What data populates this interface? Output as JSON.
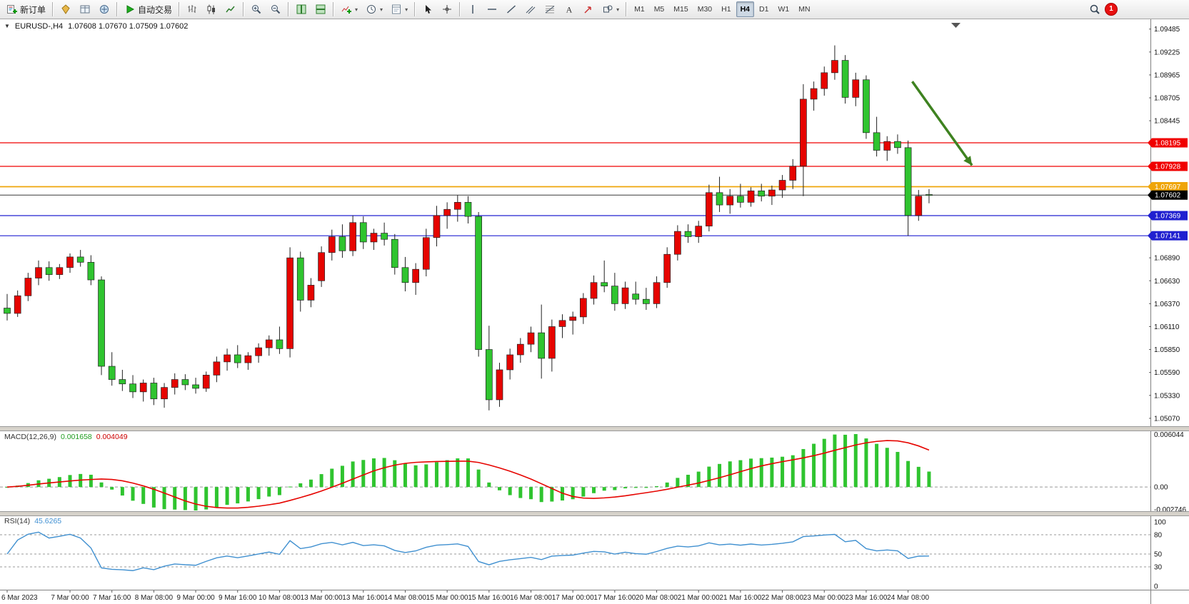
{
  "toolbar": {
    "groups": [
      [
        {
          "name": "new-order-button",
          "icon": "new-order-icon",
          "label": "新订单"
        }
      ],
      [
        {
          "name": "metaeditor-button",
          "icon": "metaeditor-icon"
        },
        {
          "name": "market-watch-button",
          "icon": "market-watch-icon"
        },
        {
          "name": "navigator-button",
          "icon": "navigator-icon"
        }
      ],
      [
        {
          "name": "autotrading-button",
          "icon": "play-icon",
          "label": "自动交易"
        }
      ],
      [
        {
          "name": "bar-chart-button",
          "icon": "bar-chart-icon"
        },
        {
          "name": "candlestick-chart-button",
          "icon": "candle-chart-icon"
        },
        {
          "name": "line-chart-button",
          "icon": "line-chart-icon"
        }
      ],
      [
        {
          "name": "zoom-in-button",
          "icon": "zoom-in-icon"
        },
        {
          "name": "zoom-out-button",
          "icon": "zoom-out-icon"
        }
      ],
      [
        {
          "name": "tile-windows-button",
          "icon": "tile-windows-icon"
        },
        {
          "name": "cascade-windows-button",
          "icon": "cascade-windows-icon"
        }
      ],
      [
        {
          "name": "indicators-button",
          "icon": "indicators-icon",
          "dropdown": true
        },
        {
          "name": "periods-button",
          "icon": "clock-icon",
          "dropdown": true
        },
        {
          "name": "templates-button",
          "icon": "template-icon",
          "dropdown": true
        }
      ],
      [
        {
          "name": "cursor-button",
          "icon": "cursor-icon"
        },
        {
          "name": "crosshair-button",
          "icon": "crosshair-icon"
        }
      ],
      [
        {
          "name": "vertical-line-button",
          "icon": "vline-icon"
        },
        {
          "name": "horizontal-line-button",
          "icon": "hline-icon"
        },
        {
          "name": "trendline-button",
          "icon": "trendline-icon"
        },
        {
          "name": "channel-button",
          "icon": "channel-icon"
        },
        {
          "name": "fibonacci-button",
          "icon": "fibonacci-icon"
        },
        {
          "name": "text-label-button",
          "icon": "text-icon"
        },
        {
          "name": "arrow-label-button",
          "icon": "arrow-label-icon"
        },
        {
          "name": "shapes-menu-button",
          "icon": "shapes-icon",
          "dropdown": true
        }
      ]
    ],
    "timeframes": [
      {
        "label": "M1"
      },
      {
        "label": "M5"
      },
      {
        "label": "M15"
      },
      {
        "label": "M30"
      },
      {
        "label": "H1"
      },
      {
        "label": "H4",
        "active": true
      },
      {
        "label": "D1"
      },
      {
        "label": "W1"
      },
      {
        "label": "MN"
      }
    ],
    "search_icon": "search-icon",
    "notification_count": "1"
  },
  "chart": {
    "symbol_label": "EURUSD-,H4",
    "ohlc_label": "1.07608 1.07670 1.07509 1.07602"
  },
  "indicators": {
    "macd": {
      "label": "MACD(12,26,9)",
      "value_main": "0.001658",
      "value_signal": "0.004049",
      "axis": {
        "top": "0.006044",
        "zero": "0.00",
        "bottom": "-0.002746"
      }
    },
    "rsi": {
      "label": "RSI(14)",
      "value": "45.6265",
      "axis_labels": [
        {
          "v": 100,
          "t": "100",
          "dashed": false
        },
        {
          "v": 80,
          "t": "80",
          "dashed": true
        },
        {
          "v": 50,
          "t": "50",
          "dashed": true
        },
        {
          "v": 30,
          "t": "30",
          "dashed": true
        },
        {
          "v": 0,
          "t": "0",
          "dashed": false
        }
      ]
    }
  },
  "chart_data": {
    "type": "candlestick+indicators",
    "symbol": "EURUSD-",
    "timeframe": "H4",
    "note_colors": "Chinese convention: red = bullish (up), green = bearish (down)",
    "price_scale": {
      "top": 1.0958,
      "bottom": 1.0498
    },
    "price_axis_ticks": [
      "1.09485",
      "1.09225",
      "1.08965",
      "1.08705",
      "1.08445",
      "1.06890",
      "1.06630",
      "1.06370",
      "1.06110",
      "1.05850",
      "1.05590",
      "1.05330",
      "1.05070"
    ],
    "levels": [
      {
        "price": 1.08195,
        "label": "1.08195",
        "color": "#f00000",
        "width": 1.2
      },
      {
        "price": 1.07928,
        "label": "1.07928",
        "color": "#f00000",
        "width": 1.2
      },
      {
        "price": 1.07697,
        "label": "1.07697",
        "color": "#efa50a",
        "width": 1.8
      },
      {
        "price": 1.07369,
        "label": "1.07369",
        "color": "#2020d0",
        "width": 1.2
      },
      {
        "price": 1.07141,
        "label": "1.07141",
        "color": "#2020d0",
        "width": 1.2
      }
    ],
    "current_price": {
      "price": 1.07602,
      "label": "1.07602",
      "color": "#000000"
    },
    "arrow": {
      "bar_from": 86.4,
      "price_from": 1.0889,
      "bar_to": 92.1,
      "price_to": 1.0794,
      "color": "#3e8220"
    },
    "colors": {
      "up": "#e60400",
      "down": "#2fc42f",
      "wick": "#222222",
      "body_border": "#222222",
      "macd_hist": "#2fc42f",
      "macd_signal": "#e60400",
      "rsi": "#4090d0"
    },
    "candles": [
      [
        1.0632,
        1.0648,
        1.0618,
        1.0626
      ],
      [
        1.0626,
        1.0652,
        1.0622,
        1.0646
      ],
      [
        1.0646,
        1.0672,
        1.064,
        1.0666
      ],
      [
        1.0666,
        1.0686,
        1.0658,
        1.0678
      ],
      [
        1.0678,
        1.0685,
        1.0663,
        1.067
      ],
      [
        1.067,
        1.0682,
        1.0665,
        1.0678
      ],
      [
        1.0678,
        1.0694,
        1.0672,
        1.069
      ],
      [
        1.069,
        1.0698,
        1.0679,
        1.0684
      ],
      [
        1.0684,
        1.0692,
        1.0658,
        1.0664
      ],
      [
        1.0664,
        1.0668,
        1.0556,
        1.0566
      ],
      [
        1.0566,
        1.0582,
        1.0544,
        1.0551
      ],
      [
        1.0551,
        1.0562,
        1.0538,
        1.0546
      ],
      [
        1.0546,
        1.0556,
        1.053,
        1.0537
      ],
      [
        1.0537,
        1.0551,
        1.0526,
        1.0547
      ],
      [
        1.0547,
        1.0553,
        1.0522,
        1.0529
      ],
      [
        1.0529,
        1.0547,
        1.0519,
        1.0542
      ],
      [
        1.0542,
        1.0558,
        1.0534,
        1.0551
      ],
      [
        1.0551,
        1.0557,
        1.0539,
        1.0545
      ],
      [
        1.0545,
        1.0553,
        1.0535,
        1.0541
      ],
      [
        1.0541,
        1.056,
        1.0537,
        1.0556
      ],
      [
        1.0556,
        1.0577,
        1.0548,
        1.0571
      ],
      [
        1.0571,
        1.0586,
        1.0561,
        1.0579
      ],
      [
        1.0579,
        1.059,
        1.0564,
        1.057
      ],
      [
        1.057,
        1.0582,
        1.0562,
        1.0578
      ],
      [
        1.0578,
        1.0592,
        1.057,
        1.0587
      ],
      [
        1.0587,
        1.0601,
        1.0578,
        1.0596
      ],
      [
        1.0596,
        1.0611,
        1.058,
        1.0586
      ],
      [
        1.0586,
        1.0701,
        1.0576,
        1.0689
      ],
      [
        1.0689,
        1.0696,
        1.0628,
        1.0641
      ],
      [
        1.0641,
        1.0666,
        1.0633,
        1.0658
      ],
      [
        1.0663,
        1.0702,
        1.0656,
        1.0695
      ],
      [
        1.0695,
        1.0721,
        1.0686,
        1.0713
      ],
      [
        1.0713,
        1.0727,
        1.0689,
        1.0697
      ],
      [
        1.0697,
        1.0737,
        1.0691,
        1.0729
      ],
      [
        1.0729,
        1.0736,
        1.0699,
        1.0707
      ],
      [
        1.0707,
        1.0722,
        1.0698,
        1.0717
      ],
      [
        1.0717,
        1.0729,
        1.0703,
        1.071
      ],
      [
        1.071,
        1.0716,
        1.067,
        1.0678
      ],
      [
        1.0678,
        1.069,
        1.0651,
        1.0661
      ],
      [
        1.0661,
        1.0683,
        1.0647,
        1.0676
      ],
      [
        1.0676,
        1.0722,
        1.0668,
        1.0712
      ],
      [
        1.0712,
        1.0748,
        1.0702,
        1.0737
      ],
      [
        1.0737,
        1.0752,
        1.0722,
        1.0744
      ],
      [
        1.0744,
        1.076,
        1.073,
        1.0752
      ],
      [
        1.0752,
        1.0759,
        1.0728,
        1.0736
      ],
      [
        1.0736,
        1.0741,
        1.0577,
        1.0585
      ],
      [
        1.0585,
        1.0612,
        1.0516,
        1.0528
      ],
      [
        1.0528,
        1.057,
        1.052,
        1.0562
      ],
      [
        1.0562,
        1.0586,
        1.0551,
        1.0579
      ],
      [
        1.0579,
        1.0598,
        1.057,
        1.0591
      ],
      [
        1.0591,
        1.0611,
        1.0582,
        1.0604
      ],
      [
        1.0604,
        1.0636,
        1.0552,
        1.0575
      ],
      [
        1.0575,
        1.0619,
        1.056,
        1.0611
      ],
      [
        1.0611,
        1.0625,
        1.0598,
        1.0618
      ],
      [
        1.0618,
        1.0628,
        1.0602,
        1.0622
      ],
      [
        1.0622,
        1.0649,
        1.0614,
        1.0643
      ],
      [
        1.0643,
        1.0669,
        1.0636,
        1.0661
      ],
      [
        1.0661,
        1.0686,
        1.065,
        1.0657
      ],
      [
        1.0657,
        1.0672,
        1.0629,
        1.0637
      ],
      [
        1.0637,
        1.0662,
        1.0631,
        1.0655
      ],
      [
        1.0648,
        1.0662,
        1.0636,
        1.0642
      ],
      [
        1.0642,
        1.0655,
        1.063,
        1.0637
      ],
      [
        1.0637,
        1.0668,
        1.0632,
        1.0661
      ],
      [
        1.0661,
        1.0701,
        1.0655,
        1.0693
      ],
      [
        1.0693,
        1.0726,
        1.0686,
        1.0719
      ],
      [
        1.0719,
        1.0727,
        1.0706,
        1.0713
      ],
      [
        1.0713,
        1.0731,
        1.0706,
        1.0725
      ],
      [
        1.0725,
        1.0772,
        1.0719,
        1.0763
      ],
      [
        1.0763,
        1.0781,
        1.0741,
        1.0749
      ],
      [
        1.0749,
        1.0767,
        1.0739,
        1.0759
      ],
      [
        1.0759,
        1.0773,
        1.0746,
        1.0752
      ],
      [
        1.0752,
        1.0769,
        1.0747,
        1.0765
      ],
      [
        1.0765,
        1.0773,
        1.0753,
        1.0759
      ],
      [
        1.0759,
        1.0771,
        1.0749,
        1.0766
      ],
      [
        1.0766,
        1.0783,
        1.0757,
        1.0777
      ],
      [
        1.0777,
        1.0801,
        1.0767,
        1.0793
      ],
      [
        1.0793,
        1.0886,
        1.0759,
        1.0869
      ],
      [
        1.0869,
        1.0889,
        1.0856,
        1.0881
      ],
      [
        1.0881,
        1.0906,
        1.0873,
        1.0899
      ],
      [
        1.0899,
        1.093,
        1.0891,
        1.0913
      ],
      [
        1.0913,
        1.0919,
        1.0864,
        1.0871
      ],
      [
        1.0871,
        1.0899,
        1.0861,
        1.0891
      ],
      [
        1.0891,
        1.0896,
        1.0824,
        1.0831
      ],
      [
        1.0831,
        1.0849,
        1.0804,
        1.0811
      ],
      [
        1.0811,
        1.0827,
        1.0799,
        1.0821
      ],
      [
        1.0821,
        1.0829,
        1.0807,
        1.0814
      ],
      [
        1.0814,
        1.0822,
        1.0714,
        1.0737
      ],
      [
        1.0737,
        1.0766,
        1.0731,
        1.0759
      ],
      [
        1.07608,
        1.0767,
        1.07509,
        1.07602
      ]
    ],
    "time_labels": [
      {
        "i": 0,
        "t": "6 Mar 2023"
      },
      {
        "i": 6,
        "t": "7 Mar 00:00"
      },
      {
        "i": 10,
        "t": "7 Mar 16:00"
      },
      {
        "i": 14,
        "t": "8 Mar 08:00"
      },
      {
        "i": 18,
        "t": "9 Mar 00:00"
      },
      {
        "i": 22,
        "t": "9 Mar 16:00"
      },
      {
        "i": 26,
        "t": "10 Mar 08:00"
      },
      {
        "i": 30,
        "t": "13 Mar 00:00"
      },
      {
        "i": 34,
        "t": "13 Mar 16:00"
      },
      {
        "i": 38,
        "t": "14 Mar 08:00"
      },
      {
        "i": 42,
        "t": "15 Mar 00:00"
      },
      {
        "i": 46,
        "t": "15 Mar 16:00"
      },
      {
        "i": 50,
        "t": "16 Mar 08:00"
      },
      {
        "i": 54,
        "t": "17 Mar 00:00"
      },
      {
        "i": 58,
        "t": "17 Mar 16:00"
      },
      {
        "i": 62,
        "t": "20 Mar 08:00"
      },
      {
        "i": 66,
        "t": "21 Mar 00:00"
      },
      {
        "i": 70,
        "t": "21 Mar 16:00"
      },
      {
        "i": 74,
        "t": "22 Mar 08:00"
      },
      {
        "i": 78,
        "t": "23 Mar 00:00"
      },
      {
        "i": 82,
        "t": "23 Mar 16:00"
      },
      {
        "i": 86,
        "t": "24 Mar 08:00"
      }
    ]
  }
}
